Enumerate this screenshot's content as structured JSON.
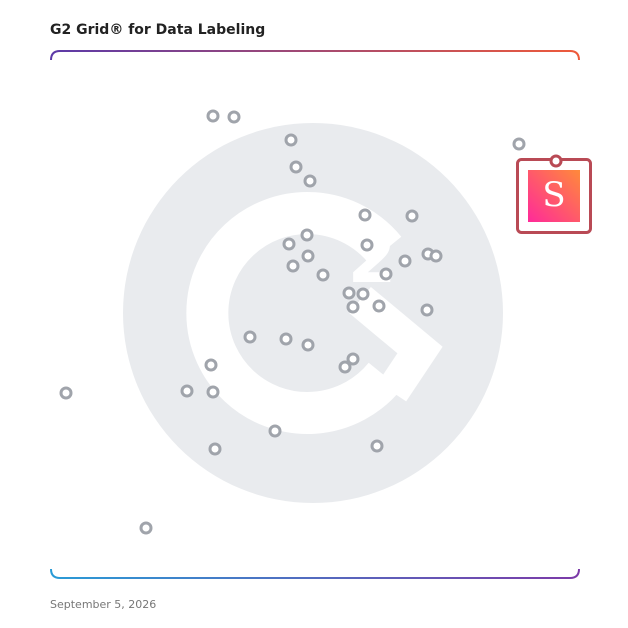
{
  "header": {
    "title": "G2 Grid® for Data Labeling"
  },
  "highlight": {
    "logo_text": "S"
  },
  "footer": {
    "date": "September 5, 2026"
  }
}
